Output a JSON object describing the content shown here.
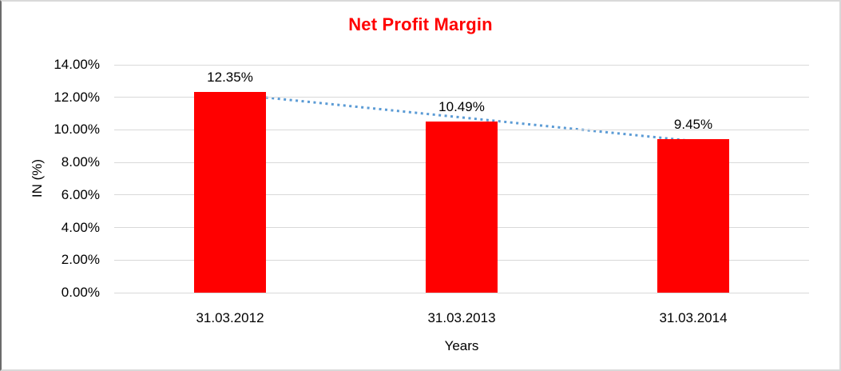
{
  "chart_data": {
    "type": "bar",
    "title": "Net Profit Margin",
    "title_color": "#ff0000",
    "categories": [
      "31.03.2012",
      "31.03.2013",
      "31.03.2014"
    ],
    "values": [
      12.35,
      10.49,
      9.45
    ],
    "data_labels": [
      "12.35%",
      "10.49%",
      "9.45%"
    ],
    "xlabel": "Years",
    "ylabel": "IN (%)",
    "ylim": [
      0,
      14
    ],
    "ytick_step": 2,
    "yticks": [
      "14.00%",
      "12.00%",
      "10.00%",
      "8.00%",
      "6.00%",
      "4.00%",
      "2.00%",
      "0.00%"
    ],
    "grid": true,
    "legend": false,
    "bar_color": "#ff0000",
    "gridline_color": "#d9d9d9",
    "text_color": "#000000",
    "trendline": {
      "type": "linear",
      "style": "dotted",
      "color": "#5b9bd5"
    }
  }
}
